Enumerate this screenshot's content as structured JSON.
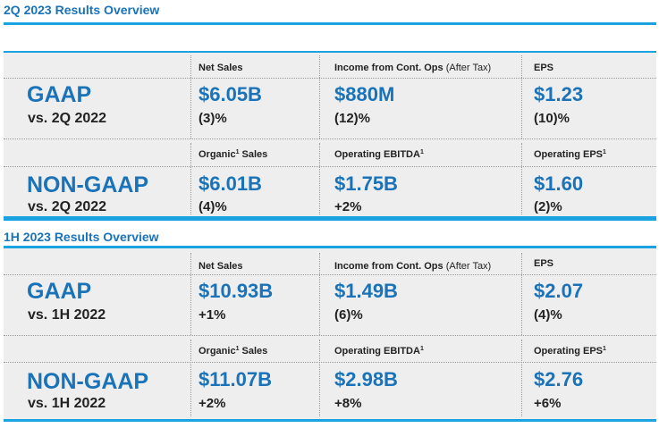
{
  "sections": [
    {
      "title": "2Q 2023 Results Overview",
      "rows": [
        {
          "name": "GAAP",
          "vs": "vs. 2Q 2022",
          "metrics": [
            {
              "label": "Net Sales",
              "label_sup": "",
              "label_tail": "",
              "label_note": "",
              "value": "$6.05B",
              "change": "(3)%"
            },
            {
              "label": "Income from Cont. Ops",
              "label_sup": "",
              "label_tail": "",
              "label_note": "(After Tax)",
              "value": "$880M",
              "change": "(12)%"
            },
            {
              "label": "EPS",
              "label_sup": "",
              "label_tail": "",
              "label_note": "",
              "value": "$1.23",
              "change": "(10)%"
            }
          ]
        },
        {
          "name": "NON-GAAP",
          "vs": "vs. 2Q 2022",
          "metrics": [
            {
              "label": "Organic",
              "label_sup": "1",
              "label_tail": " Sales",
              "label_note": "",
              "value": "$6.01B",
              "change": "(4)%"
            },
            {
              "label": "Operating EBITDA",
              "label_sup": "1",
              "label_tail": "",
              "label_note": "",
              "value": "$1.75B",
              "change": "+2%"
            },
            {
              "label": "Operating EPS",
              "label_sup": "1",
              "label_tail": "",
              "label_note": "",
              "value": "$1.60",
              "change": "(2)%"
            }
          ]
        }
      ]
    },
    {
      "title": "1H 2023 Results Overview",
      "rows": [
        {
          "name": "GAAP",
          "vs": "vs. 1H 2022",
          "metrics": [
            {
              "label": "Net Sales",
              "label_sup": "",
              "label_tail": "",
              "label_note": "",
              "value": "$10.93B",
              "change": "+1%"
            },
            {
              "label": "Income from Cont. Ops",
              "label_sup": "",
              "label_tail": "",
              "label_note": "(After Tax)",
              "value": "$1.49B",
              "change": "(6)%"
            },
            {
              "label": "EPS",
              "label_sup": "",
              "label_tail": "",
              "label_note": "",
              "value": "$2.07",
              "change": "(4)%"
            }
          ]
        },
        {
          "name": "NON-GAAP",
          "vs": "vs. 1H 2022",
          "metrics": [
            {
              "label": "Organic",
              "label_sup": "1",
              "label_tail": " Sales",
              "label_note": "",
              "value": "$11.07B",
              "change": "+2%"
            },
            {
              "label": "Operating EBITDA",
              "label_sup": "1",
              "label_tail": "",
              "label_note": "",
              "value": "$2.98B",
              "change": "+8%"
            },
            {
              "label": "Operating EPS",
              "label_sup": "1",
              "label_tail": "",
              "label_note": "",
              "value": "$2.76",
              "change": "+6%"
            }
          ]
        }
      ]
    }
  ],
  "colors": {
    "accent": "#1a73b8",
    "rule": "#1aa3e0",
    "panel": "#eeeeee",
    "text": "#222222"
  }
}
